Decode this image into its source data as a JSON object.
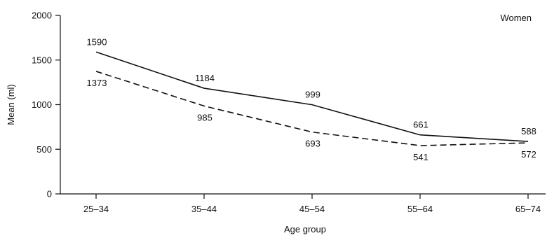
{
  "chart_data": {
    "type": "line",
    "title": "",
    "panel_label": "Women",
    "xlabel": "Age group",
    "ylabel": "Mean (ml)",
    "categories": [
      "25–34",
      "35–44",
      "45–54",
      "55–64",
      "65–74"
    ],
    "y_ticks": [
      0,
      500,
      1000,
      1500,
      2000
    ],
    "ylim": [
      0,
      2000
    ],
    "grid": false,
    "series": [
      {
        "style": "solid",
        "values": [
          1590,
          1184,
          999,
          661,
          588
        ]
      },
      {
        "style": "dashed",
        "values": [
          1373,
          985,
          693,
          541,
          572
        ]
      }
    ]
  }
}
